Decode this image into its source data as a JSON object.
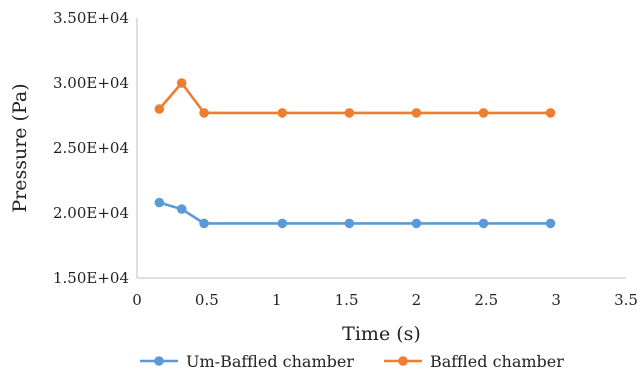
{
  "chart_data": {
    "type": "line",
    "title": "",
    "xlabel": "Time (s)",
    "ylabel": "Pressure (Pa)",
    "xlim": [
      0,
      3.5
    ],
    "ylim": [
      15000,
      35000
    ],
    "x_ticks": [
      0,
      0.5,
      1,
      1.5,
      2,
      2.5,
      3,
      3.5
    ],
    "x_tick_labels": [
      "0",
      "0.5",
      "1",
      "1.5",
      "2",
      "2.5",
      "3",
      "3.5"
    ],
    "y_ticks": [
      15000,
      20000,
      25000,
      30000,
      35000
    ],
    "y_tick_labels": [
      "1.50E+04",
      "2.00E+04",
      "2.50E+04",
      "3.00E+04",
      "3.50E+04"
    ],
    "grid": false,
    "legend_position": "bottom",
    "series": [
      {
        "name": "Um-Baffled chamber",
        "color": "#5b9bd5",
        "points": [
          [
            0.16,
            20800
          ],
          [
            0.32,
            20300
          ],
          [
            0.48,
            19200
          ],
          [
            1.04,
            19200
          ],
          [
            1.52,
            19200
          ],
          [
            2.0,
            19200
          ],
          [
            2.48,
            19200
          ],
          [
            2.96,
            19200
          ]
        ]
      },
      {
        "name": "Baffled chamber",
        "color": "#ed7d31",
        "points": [
          [
            0.16,
            28000
          ],
          [
            0.32,
            30000
          ],
          [
            0.48,
            27700
          ],
          [
            1.04,
            27700
          ],
          [
            1.52,
            27700
          ],
          [
            2.0,
            27700
          ],
          [
            2.48,
            27700
          ],
          [
            2.96,
            27700
          ]
        ]
      }
    ]
  }
}
